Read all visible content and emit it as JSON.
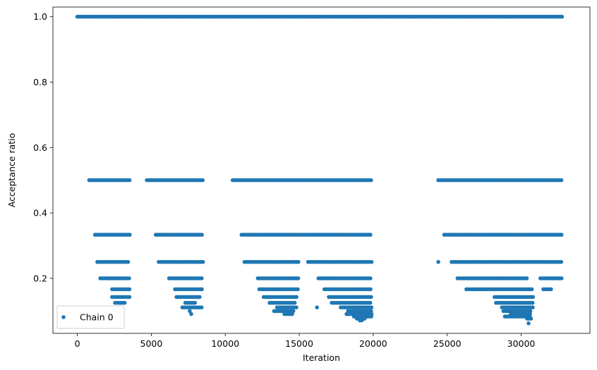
{
  "chart_data": {
    "type": "scatter",
    "xlabel": "Iteration",
    "ylabel": "Acceptance ratio",
    "xlim": [
      -1650,
      34650
    ],
    "ylim": [
      0.0318,
      1.0295
    ],
    "xticks": [
      0,
      5000,
      10000,
      15000,
      20000,
      25000,
      30000
    ],
    "xtick_labels": [
      "0",
      "5000",
      "10000",
      "15000",
      "20000",
      "25000",
      "30000"
    ],
    "yticks": [
      0.2,
      0.4,
      0.6,
      0.8,
      1.0
    ],
    "ytick_labels": [
      "0.2",
      "0.4",
      "0.6",
      "0.8",
      "1.0"
    ],
    "grid": false,
    "legend_position": "lower-left",
    "colors": {
      "series": "#1f77b4"
    },
    "series": [
      {
        "name": "Chain 0",
        "marker": "circle",
        "segments": [
          {
            "y": 1.0,
            "x_ranges": [
              [
                0,
                32800
              ]
            ]
          },
          {
            "y": 0.5,
            "x_ranges": [
              [
                800,
                3550
              ],
              [
                4700,
                8500
              ],
              [
                10500,
                19900
              ],
              [
                24400,
                32800
              ]
            ]
          },
          {
            "y": 0.3333,
            "x_ranges": [
              [
                1200,
                3550
              ],
              [
                5300,
                8500
              ],
              [
                11100,
                19900
              ],
              [
                24800,
                32800
              ]
            ]
          },
          {
            "y": 0.25,
            "x_ranges": [
              [
                1350,
                3550
              ],
              [
                5500,
                8500
              ],
              [
                11300,
                15000
              ],
              [
                15600,
                19900
              ],
              [
                24400,
                24500
              ],
              [
                25300,
                32800
              ]
            ]
          },
          {
            "y": 0.2,
            "x_ranges": [
              [
                1550,
                3550
              ],
              [
                6200,
                8500
              ],
              [
                12200,
                15000
              ],
              [
                16300,
                19900
              ],
              [
                25700,
                30500
              ],
              [
                31300,
                32800
              ]
            ]
          },
          {
            "y": 0.1667,
            "x_ranges": [
              [
                2350,
                3550
              ],
              [
                6600,
                8500
              ],
              [
                12300,
                15000
              ],
              [
                16700,
                19900
              ],
              [
                26300,
                30800
              ],
              [
                31500,
                32100
              ]
            ]
          },
          {
            "y": 0.1429,
            "x_ranges": [
              [
                2350,
                3550
              ],
              [
                6700,
                8300
              ],
              [
                12600,
                14900
              ],
              [
                17000,
                19900
              ],
              [
                28200,
                30800
              ]
            ]
          },
          {
            "y": 0.125,
            "x_ranges": [
              [
                2550,
                3250
              ],
              [
                7300,
                8000
              ],
              [
                13000,
                14800
              ],
              [
                17200,
                19900
              ],
              [
                28300,
                30800
              ]
            ]
          },
          {
            "y": 0.1111,
            "x_ranges": [
              [
                7100,
                8500
              ],
              [
                13500,
                14900
              ],
              [
                16200,
                16300
              ],
              [
                17800,
                19900
              ],
              [
                28700,
                30800
              ]
            ]
          },
          {
            "y": 0.1,
            "x_ranges": [
              [
                7600,
                7700
              ],
              [
                13300,
                14700
              ],
              [
                18300,
                19900
              ],
              [
                28800,
                30700
              ]
            ]
          },
          {
            "y": 0.0909,
            "x_ranges": [
              [
                7700,
                7800
              ],
              [
                14000,
                14600
              ],
              [
                18200,
                19900
              ],
              [
                29300,
                30700
              ]
            ]
          },
          {
            "y": 0.0833,
            "x_ranges": [
              [
                18700,
                19900
              ],
              [
                28900,
                30700
              ]
            ]
          },
          {
            "y": 0.0769,
            "x_ranges": [
              [
                18900,
                19500
              ],
              [
                30400,
                30700
              ]
            ]
          },
          {
            "y": 0.0714,
            "x_ranges": [
              [
                19100,
                19300
              ]
            ]
          },
          {
            "y": 0.0625,
            "x_ranges": [
              [
                30500,
                30600
              ]
            ]
          }
        ]
      }
    ]
  }
}
